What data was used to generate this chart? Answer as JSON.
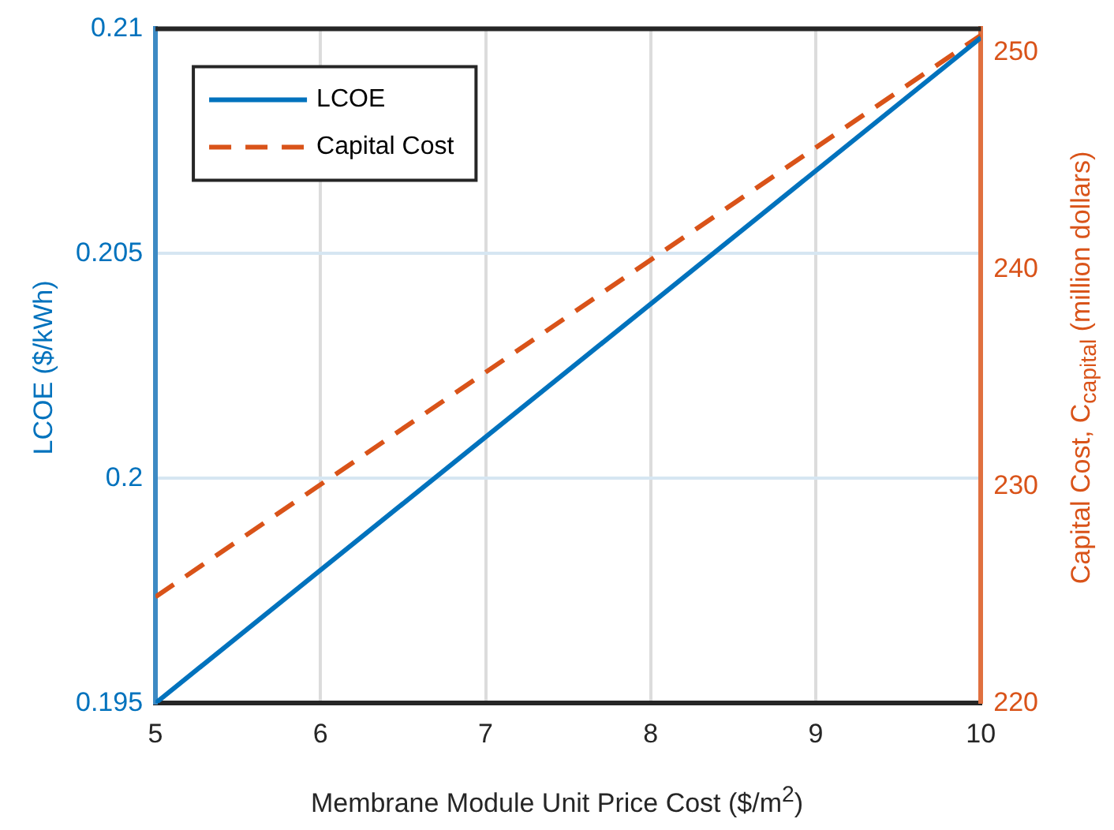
{
  "chart_data": {
    "type": "line",
    "xlabel": "Membrane Module Unit Price Cost ($/m$^{2}$)",
    "ylabel": "LCOE ($/kWh)",
    "y2label": "Capital Cost, C$_{capital}$ (million dollars)",
    "x": [
      5,
      10
    ],
    "series": [
      {
        "name": "LCOE",
        "color": "#0072bd",
        "values": [
          0.195,
          0.2098
        ],
        "line_style": "solid"
      },
      {
        "name": "Capital Cost",
        "color": "#d95319",
        "values": [
          224.9,
          250.8
        ],
        "axis": "y2",
        "line_style": "dashed"
      }
    ],
    "xlim": [
      5,
      10
    ],
    "xticks": [
      5,
      6,
      7,
      8,
      9,
      10
    ],
    "ylim": [
      0.195,
      0.21
    ],
    "yticks": [
      0.195,
      0.2,
      0.205,
      0.21
    ],
    "y2lim": [
      220,
      251.1
    ],
    "y2ticks": [
      220,
      230,
      240,
      250
    ],
    "grid": true,
    "legend": "top left",
    "marker": "none"
  }
}
